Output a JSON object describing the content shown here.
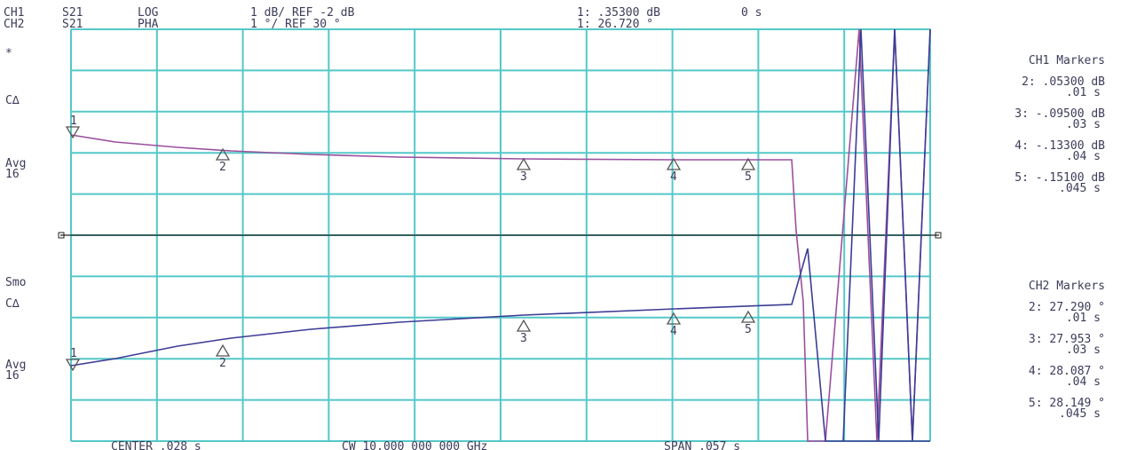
{
  "header": {
    "ch1": {
      "channel": "CH1",
      "param": "S21",
      "format": "LOG",
      "scale": "1 dB/ REF -2 dB",
      "marker": "1: .35300 dB",
      "time": "0 s"
    },
    "ch2": {
      "channel": "CH2",
      "param": "S21",
      "format": "PHA",
      "scale": "1 °/ REF 30 °",
      "marker": "1: 26.720 °"
    }
  },
  "left_labels": {
    "top": [
      "*",
      "C∆",
      "Avg",
      "16"
    ],
    "bottom": [
      "Smo",
      "C∆",
      "Avg",
      "16"
    ]
  },
  "ch1_markers": {
    "title": "CH1 Markers",
    "items": [
      {
        "value": "2: .05300 dB",
        "time": ".01 s"
      },
      {
        "value": "3: -.09500 dB",
        "time": ".03 s"
      },
      {
        "value": "4: -.13300 dB",
        "time": ".04 s"
      },
      {
        "value": "5: -.15100 dB",
        "time": ".045 s"
      }
    ]
  },
  "ch2_markers": {
    "title": "CH2 Markers",
    "items": [
      {
        "value": "2: 27.290 °",
        "time": ".01 s"
      },
      {
        "value": "3: 27.953 °",
        "time": ".03 s"
      },
      {
        "value": "4: 28.087 °",
        "time": ".04 s"
      },
      {
        "value": "5: 28.149 °",
        "time": ".045 s"
      }
    ]
  },
  "trace_markers": {
    "ch1": [
      "1",
      "2",
      "3",
      "4",
      "5"
    ],
    "ch2": [
      "1",
      "2",
      "3",
      "4",
      "5"
    ]
  },
  "footer": {
    "center": "CENTER .028 s",
    "cw": "CW 10.000 000 000 GHz",
    "span": "SPAN .057 s"
  }
}
